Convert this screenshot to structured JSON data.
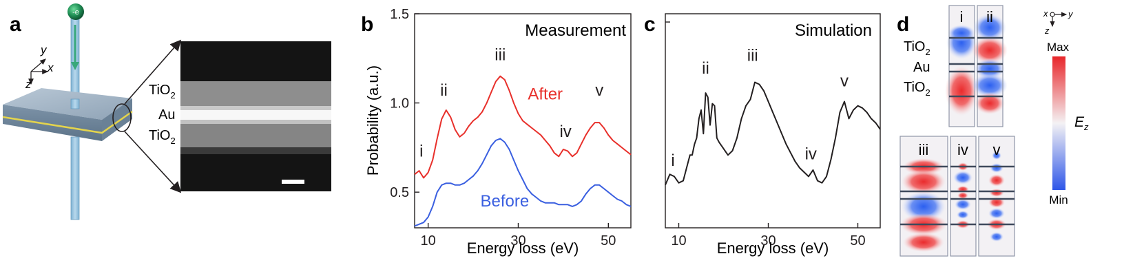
{
  "panels": {
    "a": {
      "letter": "a",
      "electron": "-e",
      "axes": {
        "y": "y",
        "x": "x",
        "z": "z"
      },
      "layers": [
        "TiO",
        "Au",
        "TiO"
      ],
      "subscript": "2"
    },
    "b": {
      "letter": "b"
    },
    "c": {
      "letter": "c"
    },
    "d": {
      "letter": "d",
      "axes": {
        "x": "x",
        "y": "y",
        "z": "z"
      },
      "layers": [
        "TiO",
        "Au",
        "TiO"
      ],
      "subscript": "2",
      "colorbar": {
        "max": "Max",
        "min": "Min",
        "label": "E",
        "label_sub": "z"
      },
      "modes": [
        "i",
        "ii",
        "iii",
        "iv",
        "v"
      ]
    }
  },
  "chart_data": [
    {
      "type": "line",
      "panel": "b",
      "title": "Measurement",
      "xlabel": "Energy loss (eV)",
      "ylabel": "Probability (a.u.)",
      "xlim": [
        7,
        55
      ],
      "ylim": [
        0.3,
        1.5
      ],
      "xticks": [
        10,
        30,
        50
      ],
      "yticks": [
        0.5,
        1.0,
        1.5
      ],
      "ytick_labels": [
        "0.5",
        "1.0",
        "1.5"
      ],
      "series": [
        {
          "name": "After",
          "color": "#e8302b",
          "points": [
            [
              7,
              0.6
            ],
            [
              8,
              0.62
            ],
            [
              9,
              0.58
            ],
            [
              10,
              0.61
            ],
            [
              11,
              0.68
            ],
            [
              12,
              0.8
            ],
            [
              13,
              0.91
            ],
            [
              14,
              0.96
            ],
            [
              15,
              0.92
            ],
            [
              16,
              0.85
            ],
            [
              17,
              0.81
            ],
            [
              18,
              0.83
            ],
            [
              19,
              0.87
            ],
            [
              20,
              0.9
            ],
            [
              21,
              0.92
            ],
            [
              22,
              0.95
            ],
            [
              23,
              1.0
            ],
            [
              24,
              1.06
            ],
            [
              25,
              1.12
            ],
            [
              26,
              1.15
            ],
            [
              27,
              1.13
            ],
            [
              28,
              1.07
            ],
            [
              29,
              1.0
            ],
            [
              30,
              0.94
            ],
            [
              31,
              0.9
            ],
            [
              32,
              0.88
            ],
            [
              33,
              0.86
            ],
            [
              34,
              0.84
            ],
            [
              35,
              0.82
            ],
            [
              36,
              0.79
            ],
            [
              37,
              0.76
            ],
            [
              38,
              0.72
            ],
            [
              39,
              0.7
            ],
            [
              40,
              0.74
            ],
            [
              41,
              0.73
            ],
            [
              42,
              0.7
            ],
            [
              43,
              0.72
            ],
            [
              44,
              0.77
            ],
            [
              45,
              0.82
            ],
            [
              46,
              0.86
            ],
            [
              47,
              0.89
            ],
            [
              48,
              0.89
            ],
            [
              49,
              0.86
            ],
            [
              50,
              0.82
            ],
            [
              51,
              0.79
            ],
            [
              52,
              0.77
            ],
            [
              53,
              0.75
            ],
            [
              54,
              0.73
            ],
            [
              55,
              0.71
            ]
          ]
        },
        {
          "name": "Before",
          "color": "#3a5fe0",
          "points": [
            [
              7,
              0.31
            ],
            [
              8,
              0.32
            ],
            [
              9,
              0.33
            ],
            [
              10,
              0.36
            ],
            [
              11,
              0.42
            ],
            [
              12,
              0.5
            ],
            [
              13,
              0.54
            ],
            [
              14,
              0.55
            ],
            [
              15,
              0.55
            ],
            [
              16,
              0.54
            ],
            [
              17,
              0.54
            ],
            [
              18,
              0.55
            ],
            [
              19,
              0.57
            ],
            [
              20,
              0.59
            ],
            [
              21,
              0.62
            ],
            [
              22,
              0.66
            ],
            [
              23,
              0.71
            ],
            [
              24,
              0.76
            ],
            [
              25,
              0.79
            ],
            [
              26,
              0.8
            ],
            [
              27,
              0.78
            ],
            [
              28,
              0.74
            ],
            [
              29,
              0.68
            ],
            [
              30,
              0.62
            ],
            [
              31,
              0.57
            ],
            [
              32,
              0.52
            ],
            [
              33,
              0.49
            ],
            [
              34,
              0.47
            ],
            [
              35,
              0.45
            ],
            [
              36,
              0.44
            ],
            [
              37,
              0.44
            ],
            [
              38,
              0.44
            ],
            [
              39,
              0.43
            ],
            [
              40,
              0.43
            ],
            [
              41,
              0.43
            ],
            [
              42,
              0.42
            ],
            [
              43,
              0.43
            ],
            [
              44,
              0.45
            ],
            [
              45,
              0.49
            ],
            [
              46,
              0.52
            ],
            [
              47,
              0.54
            ],
            [
              48,
              0.54
            ],
            [
              49,
              0.52
            ],
            [
              50,
              0.5
            ],
            [
              51,
              0.48
            ],
            [
              52,
              0.46
            ],
            [
              53,
              0.45
            ],
            [
              54,
              0.43
            ],
            [
              55,
              0.42
            ]
          ]
        }
      ],
      "peak_labels": [
        {
          "text": "i",
          "x": 8.5,
          "y": 0.7
        },
        {
          "text": "ii",
          "x": 13.5,
          "y": 1.04
        },
        {
          "text": "iii",
          "x": 26,
          "y": 1.24
        },
        {
          "text": "iv",
          "x": 40.5,
          "y": 0.81
        },
        {
          "text": "v",
          "x": 48,
          "y": 1.04
        }
      ],
      "series_labels": [
        {
          "text": "After",
          "x": 36,
          "y": 1.02
        },
        {
          "text": "Before",
          "x": 27,
          "y": 0.42
        }
      ]
    },
    {
      "type": "line",
      "panel": "c",
      "title": "Simulation",
      "xlabel": "Energy loss (eV)",
      "ylabel": "",
      "xlim": [
        7,
        55
      ],
      "ylim": [
        0,
        1
      ],
      "xticks": [
        10,
        30,
        50
      ],
      "series": [
        {
          "name": "Simulation",
          "color": "#231f20",
          "points": [
            [
              7,
              0.2
            ],
            [
              8,
              0.25
            ],
            [
              9,
              0.24
            ],
            [
              10,
              0.21
            ],
            [
              11,
              0.22
            ],
            [
              12,
              0.3
            ],
            [
              12.5,
              0.34
            ],
            [
              13,
              0.34
            ],
            [
              13.5,
              0.39
            ],
            [
              14,
              0.42
            ],
            [
              14.5,
              0.51
            ],
            [
              15,
              0.55
            ],
            [
              15.5,
              0.44
            ],
            [
              16,
              0.63
            ],
            [
              16.5,
              0.61
            ],
            [
              17,
              0.48
            ],
            [
              17.5,
              0.58
            ],
            [
              18,
              0.57
            ],
            [
              18.5,
              0.42
            ],
            [
              19,
              0.4
            ],
            [
              20,
              0.37
            ],
            [
              21,
              0.34
            ],
            [
              22,
              0.36
            ],
            [
              23,
              0.42
            ],
            [
              24,
              0.51
            ],
            [
              25,
              0.57
            ],
            [
              26,
              0.6
            ],
            [
              27,
              0.68
            ],
            [
              28,
              0.67
            ],
            [
              29,
              0.64
            ],
            [
              30,
              0.59
            ],
            [
              31,
              0.54
            ],
            [
              32,
              0.49
            ],
            [
              33,
              0.44
            ],
            [
              34,
              0.39
            ],
            [
              35,
              0.35
            ],
            [
              36,
              0.31
            ],
            [
              37,
              0.28
            ],
            [
              38,
              0.26
            ],
            [
              39,
              0.24
            ],
            [
              40,
              0.27
            ],
            [
              41,
              0.22
            ],
            [
              42,
              0.21
            ],
            [
              43,
              0.24
            ],
            [
              44,
              0.32
            ],
            [
              45,
              0.42
            ],
            [
              46,
              0.54
            ],
            [
              47,
              0.59
            ],
            [
              48,
              0.51
            ],
            [
              49,
              0.55
            ],
            [
              50,
              0.57
            ],
            [
              51,
              0.56
            ],
            [
              52,
              0.54
            ],
            [
              53,
              0.51
            ],
            [
              54,
              0.49
            ],
            [
              55,
              0.46
            ]
          ]
        }
      ],
      "peak_labels": [
        {
          "text": "i",
          "x": 8.7,
          "y": 0.29
        },
        {
          "text": "ii",
          "x": 16,
          "y": 0.72
        },
        {
          "text": "iii",
          "x": 26.5,
          "y": 0.78
        },
        {
          "text": "iv",
          "x": 39.5,
          "y": 0.32
        },
        {
          "text": "v",
          "x": 47,
          "y": 0.66
        }
      ]
    }
  ]
}
